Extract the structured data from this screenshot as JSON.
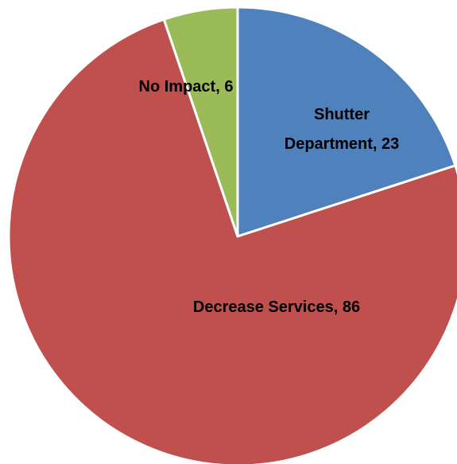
{
  "chart_data": {
    "type": "pie",
    "title": "",
    "legend": "none",
    "slices": [
      {
        "label": "Shutter Department",
        "value": 23,
        "display": "Shutter Department, 23",
        "color": "#4F81BD"
      },
      {
        "label": "Decrease Services",
        "value": 86,
        "display": "Decrease Services, 86",
        "color": "#C0504D"
      },
      {
        "label": "No Impact",
        "value": 6,
        "display": "No Impact, 6",
        "color": "#9BBB59"
      }
    ]
  }
}
